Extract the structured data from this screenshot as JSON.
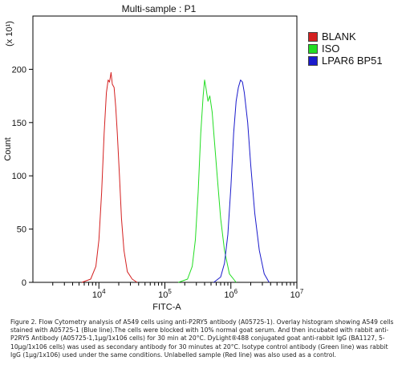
{
  "chart_data": {
    "type": "line",
    "title": "Multi-sample : P1",
    "xlabel": "FITC-A",
    "ylabel": "Count",
    "y_multiplier_label": "(x 10¹)",
    "x_scale": "log",
    "xlim": [
      1000,
      10000000
    ],
    "ylim": [
      0,
      250
    ],
    "y_ticks": [
      0,
      50,
      100,
      150,
      200
    ],
    "x_tick_labels": [
      {
        "base": "10",
        "exp": "4",
        "value": 10000
      },
      {
        "base": "10",
        "exp": "5",
        "value": 100000
      },
      {
        "base": "10",
        "exp": "6",
        "value": 1000000
      },
      {
        "base": "10",
        "exp": "7",
        "value": 10000000
      }
    ],
    "legend_position": "top-right",
    "series": [
      {
        "name": "BLANK",
        "color": "#d42020",
        "x": [
          5500,
          7500,
          9000,
          10000,
          11000,
          12000,
          13000,
          13800,
          14500,
          15300,
          16000,
          17000,
          18000,
          19000,
          20500,
          22000,
          24000,
          27000,
          32000,
          38000
        ],
        "y": [
          0,
          3,
          15,
          40,
          85,
          140,
          178,
          190,
          188,
          197,
          186,
          183,
          165,
          140,
          100,
          60,
          30,
          10,
          3,
          0
        ]
      },
      {
        "name": "ISO",
        "color": "#22dd22",
        "x": [
          160000,
          220000,
          260000,
          290000,
          320000,
          350000,
          380000,
          400000,
          420000,
          450000,
          480000,
          520000,
          560000,
          620000,
          700000,
          800000,
          950000,
          1200000
        ],
        "y": [
          0,
          3,
          15,
          40,
          85,
          140,
          175,
          190,
          182,
          170,
          175,
          160,
          135,
          100,
          60,
          30,
          8,
          0
        ]
      },
      {
        "name": "LPAR6 BP51",
        "color": "#1a1acc",
        "x": [
          550000,
          700000,
          800000,
          900000,
          1000000,
          1100000,
          1200000,
          1300000,
          1400000,
          1500000,
          1600000,
          1800000,
          2000000,
          2300000,
          2700000,
          3200000,
          3800000
        ],
        "y": [
          0,
          5,
          18,
          45,
          90,
          140,
          170,
          183,
          190,
          188,
          178,
          150,
          110,
          65,
          30,
          8,
          0
        ]
      }
    ]
  },
  "caption": "Figure 2. Flow Cytometry analysis of A549 cells using anti-P2RY5 antibody (A05725-1).  Overlay histogram showing A549 cells stained with A05725-1 (Blue line).The cells were blocked with 10% normal goat serum. And then incubated with rabbit anti-P2RY5 Antibody (A05725-1,1µg/1x106 cells) for 30 min at 20°C. DyLight®488 conjugated goat anti-rabbit IgG (BA1127, 5-10µg/1x106 cells) was used as secondary antibody for 30 minutes at 20°C. Isotype control antibody (Green line) was rabbit IgG (1µg/1x106) used under the same conditions.  Unlabelled sample (Red line) was also used as a control."
}
